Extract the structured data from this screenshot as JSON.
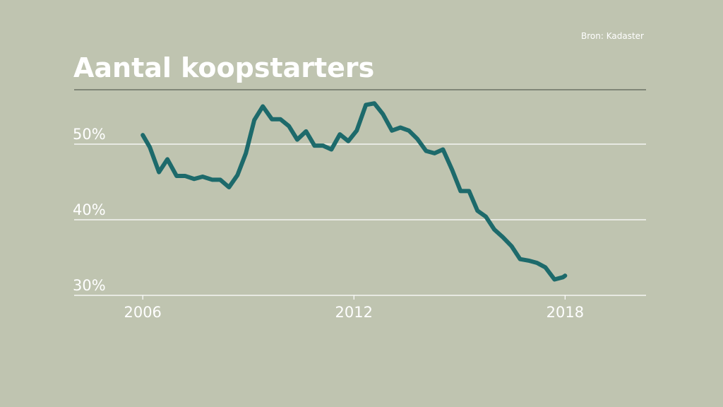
{
  "chart_data": {
    "type": "line",
    "title": "Aantal koopstarters",
    "source": "Bron: Kadaster",
    "x": [
      2006.0,
      2006.2,
      2006.46,
      2006.7,
      2006.96,
      2007.2,
      2007.46,
      2007.7,
      2007.97,
      2008.2,
      2008.45,
      2008.69,
      2008.93,
      2009.17,
      2009.41,
      2009.67,
      2009.91,
      2010.15,
      2010.39,
      2010.64,
      2010.88,
      2011.12,
      2011.36,
      2011.6,
      2011.84,
      2012.08,
      2012.34,
      2012.58,
      2012.82,
      2013.08,
      2013.32,
      2013.56,
      2013.8,
      2014.05,
      2014.29,
      2014.53,
      2014.79,
      2015.03,
      2015.27,
      2015.51,
      2015.75,
      2015.99,
      2016.23,
      2016.48,
      2016.72,
      2016.96,
      2017.2,
      2017.44,
      2017.7,
      2017.94,
      2018.0
    ],
    "series": [
      {
        "color": "#1d6a6b",
        "values": [
          51.2,
          49.6,
          46.3,
          48.0,
          45.8,
          45.8,
          45.4,
          45.7,
          45.3,
          45.3,
          44.3,
          45.9,
          48.8,
          53.2,
          55.0,
          53.3,
          53.3,
          52.4,
          50.6,
          51.7,
          49.8,
          49.8,
          49.3,
          51.3,
          50.4,
          51.8,
          55.2,
          55.4,
          54.0,
          51.8,
          52.2,
          51.8,
          50.7,
          49.1,
          48.8,
          49.3,
          46.6,
          43.8,
          43.8,
          41.2,
          40.4,
          38.7,
          37.7,
          36.5,
          34.8,
          34.6,
          34.3,
          33.7,
          32.1,
          32.4,
          32.6
        ]
      }
    ],
    "xlim": [
      2004.05,
      2020.3
    ],
    "xticks": [
      2006,
      2012,
      2018
    ],
    "ylim": [
      30,
      57.2
    ],
    "yticks": [
      {
        "value": 30,
        "label": "30%"
      },
      {
        "value": 40,
        "label": "40%"
      },
      {
        "value": 50,
        "label": "50%"
      }
    ],
    "grid": true
  }
}
